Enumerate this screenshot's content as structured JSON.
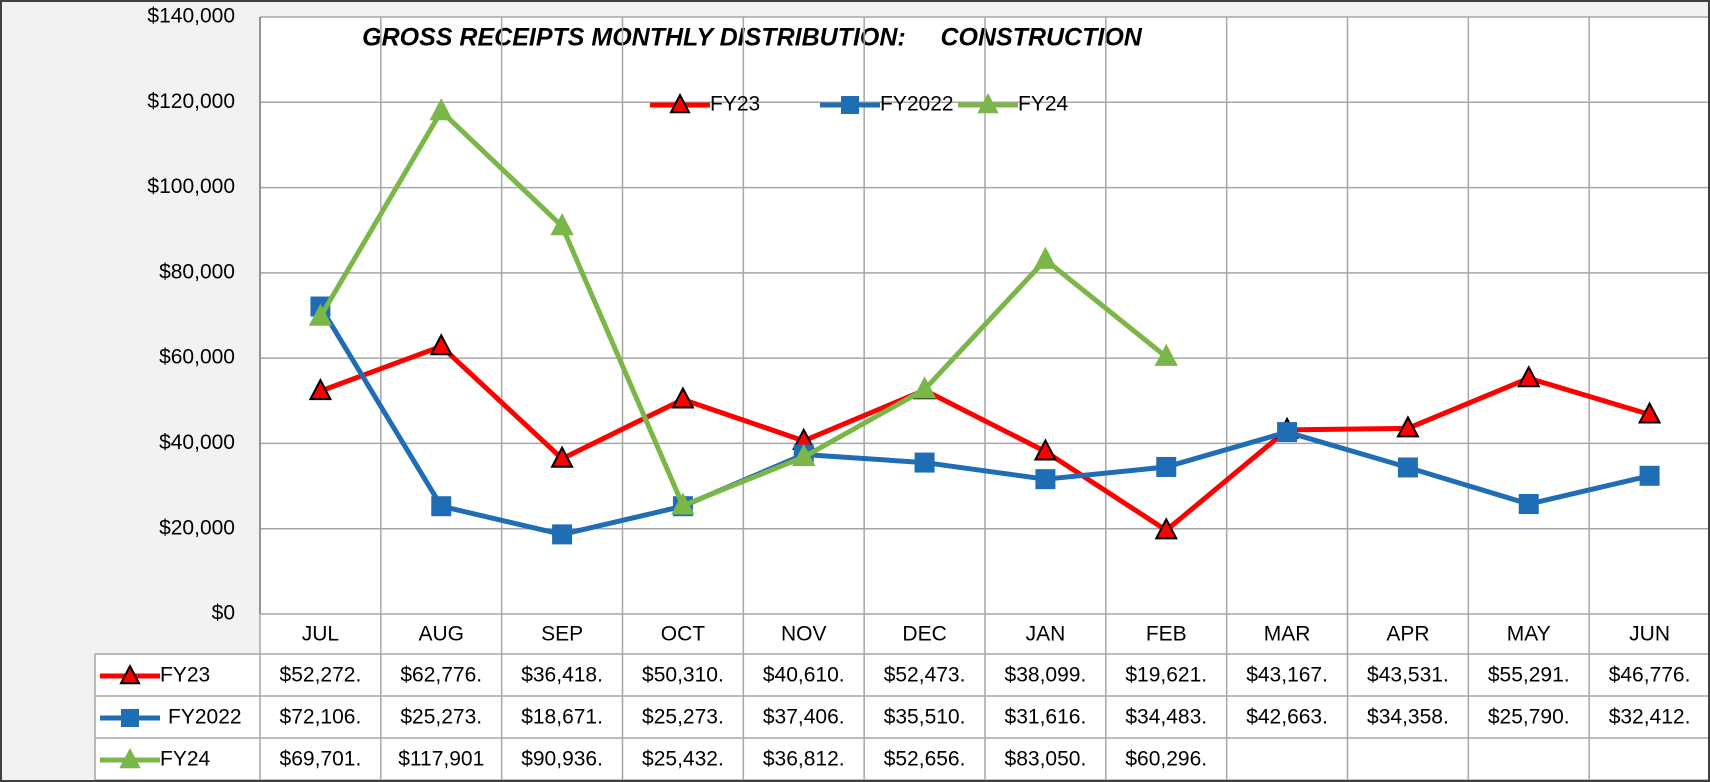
{
  "chart_data": {
    "type": "line",
    "title": "GROSS RECEIPTS MONTHLY DISTRIBUTION:     CONSTRUCTION",
    "categories": [
      "JUL",
      "AUG",
      "SEP",
      "OCT",
      "NOV",
      "DEC",
      "JAN",
      "FEB",
      "MAR",
      "APR",
      "MAY",
      "JUN"
    ],
    "series": [
      {
        "name": "FY23",
        "color": "#ff0000",
        "marker": "triangle",
        "values": [
          52272,
          62776,
          36418,
          50310,
          40610,
          52473,
          38099,
          19621,
          43167,
          43531,
          55291,
          46776
        ],
        "value_labels": [
          "$52,272.",
          "$62,776.",
          "$36,418.",
          "$50,310.",
          "$40,610.",
          "$52,473.",
          "$38,099.",
          "$19,621.",
          "$43,167.",
          "$43,531.",
          "$55,291.",
          "$46,776."
        ]
      },
      {
        "name": "FY2022",
        "color": "#1f6db5",
        "marker": "square",
        "values": [
          72106,
          25273,
          18671,
          25273,
          37406,
          35510,
          31616,
          34483,
          42663,
          34358,
          25790,
          32412
        ],
        "value_labels": [
          "$72,106.",
          "$25,273.",
          "$18,671.",
          "$25,273.",
          "$37,406.",
          "$35,510.",
          "$31,616.",
          "$34,483.",
          "$42,663.",
          "$34,358.",
          "$25,790.",
          "$32,412."
        ]
      },
      {
        "name": "FY24",
        "color": "#7ab648",
        "marker": "triangle",
        "values": [
          69701,
          117901,
          90936,
          25432,
          36812,
          52656,
          83050,
          60296,
          null,
          null,
          null,
          null
        ],
        "value_labels": [
          "$69,701.",
          "$117,901",
          "$90,936.",
          "$25,432.",
          "$36,812.",
          "$52,656.",
          "$83,050.",
          "$60,296.",
          null,
          null,
          null,
          null
        ]
      }
    ],
    "ylim": [
      0,
      140000
    ],
    "yticks": [
      {
        "value": 0,
        "label": "$0"
      },
      {
        "value": 20000,
        "label": "$20,000"
      },
      {
        "value": 40000,
        "label": "$40,000"
      },
      {
        "value": 60000,
        "label": "$60,000"
      },
      {
        "value": 80000,
        "label": "$80,000"
      },
      {
        "value": 100000,
        "label": "$100,000"
      },
      {
        "value": 120000,
        "label": "$120,000"
      },
      {
        "value": 140000,
        "label": "$140,000"
      }
    ],
    "grid": true,
    "legend": "top",
    "data_table": true
  }
}
